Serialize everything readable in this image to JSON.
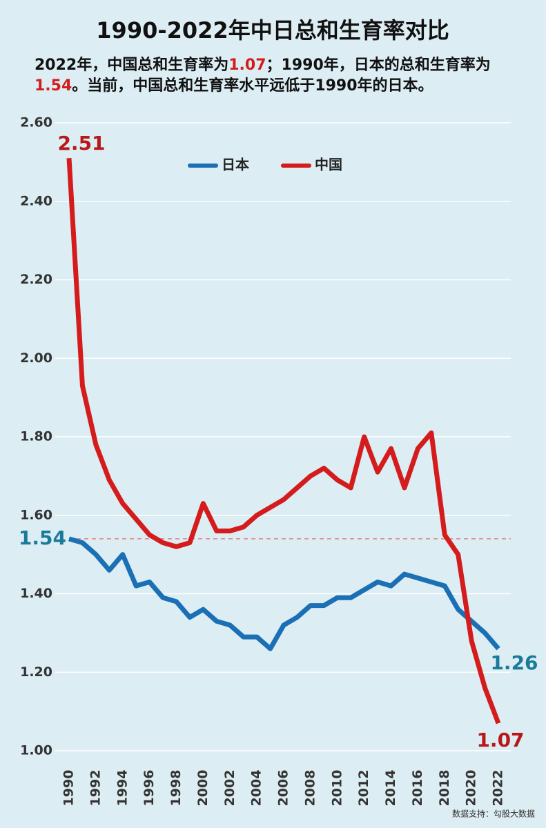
{
  "chart_data": {
    "type": "line",
    "title": "1990-2022年中日总和生育率对比",
    "subtitle": [
      "2022年，中国总和生育率为",
      "1.07",
      "；1990年，日本的总和生育率为",
      "1.54",
      "。当前，中国总和生育率水平远低于1990年的日本。"
    ],
    "source": "数据支持：勾股大数据",
    "x": [
      1990,
      1991,
      1992,
      1993,
      1994,
      1995,
      1996,
      1997,
      1998,
      1999,
      2000,
      2001,
      2002,
      2003,
      2004,
      2005,
      2006,
      2007,
      2008,
      2009,
      2010,
      2011,
      2012,
      2013,
      2014,
      2015,
      2016,
      2017,
      2018,
      2019,
      2020,
      2021,
      2022
    ],
    "series": [
      {
        "name": "日本",
        "color": "#1a6fb5",
        "values": [
          1.54,
          1.53,
          1.5,
          1.46,
          1.5,
          1.42,
          1.43,
          1.39,
          1.38,
          1.34,
          1.36,
          1.33,
          1.32,
          1.29,
          1.29,
          1.26,
          1.32,
          1.34,
          1.37,
          1.37,
          1.39,
          1.39,
          1.41,
          1.43,
          1.42,
          1.45,
          1.44,
          1.43,
          1.42,
          1.36,
          1.33,
          1.3,
          1.26
        ]
      },
      {
        "name": "中国",
        "color": "#d41c1c",
        "values": [
          2.51,
          1.93,
          1.78,
          1.69,
          1.63,
          1.59,
          1.55,
          1.53,
          1.52,
          1.53,
          1.63,
          1.56,
          1.56,
          1.57,
          1.6,
          1.62,
          1.64,
          1.67,
          1.7,
          1.72,
          1.69,
          1.67,
          1.8,
          1.71,
          1.77,
          1.67,
          1.77,
          1.81,
          1.55,
          1.5,
          1.28,
          1.16,
          1.07
        ]
      }
    ],
    "xlim": [
      1990,
      2022
    ],
    "xticks": [
      1990,
      1992,
      1994,
      1996,
      1998,
      2000,
      2002,
      2004,
      2006,
      2008,
      2010,
      2012,
      2014,
      2016,
      2018,
      2020,
      2022
    ],
    "ylim": [
      1,
      2.6
    ],
    "yticks": [
      {
        "value": 1,
        "label": "1.00"
      },
      {
        "value": 1.2,
        "label": "1.20"
      },
      {
        "value": 1.4,
        "label": "1.40"
      },
      {
        "value": 1.6,
        "label": "1.60"
      },
      {
        "value": 1.8,
        "label": "1.80"
      },
      {
        "value": 2,
        "label": "2.00"
      },
      {
        "value": 2.2,
        "label": "2.20"
      },
      {
        "value": 2.4,
        "label": "2.40"
      },
      {
        "value": 2.6,
        "label": "2.60"
      }
    ],
    "grid": true,
    "legend": "top"
  }
}
